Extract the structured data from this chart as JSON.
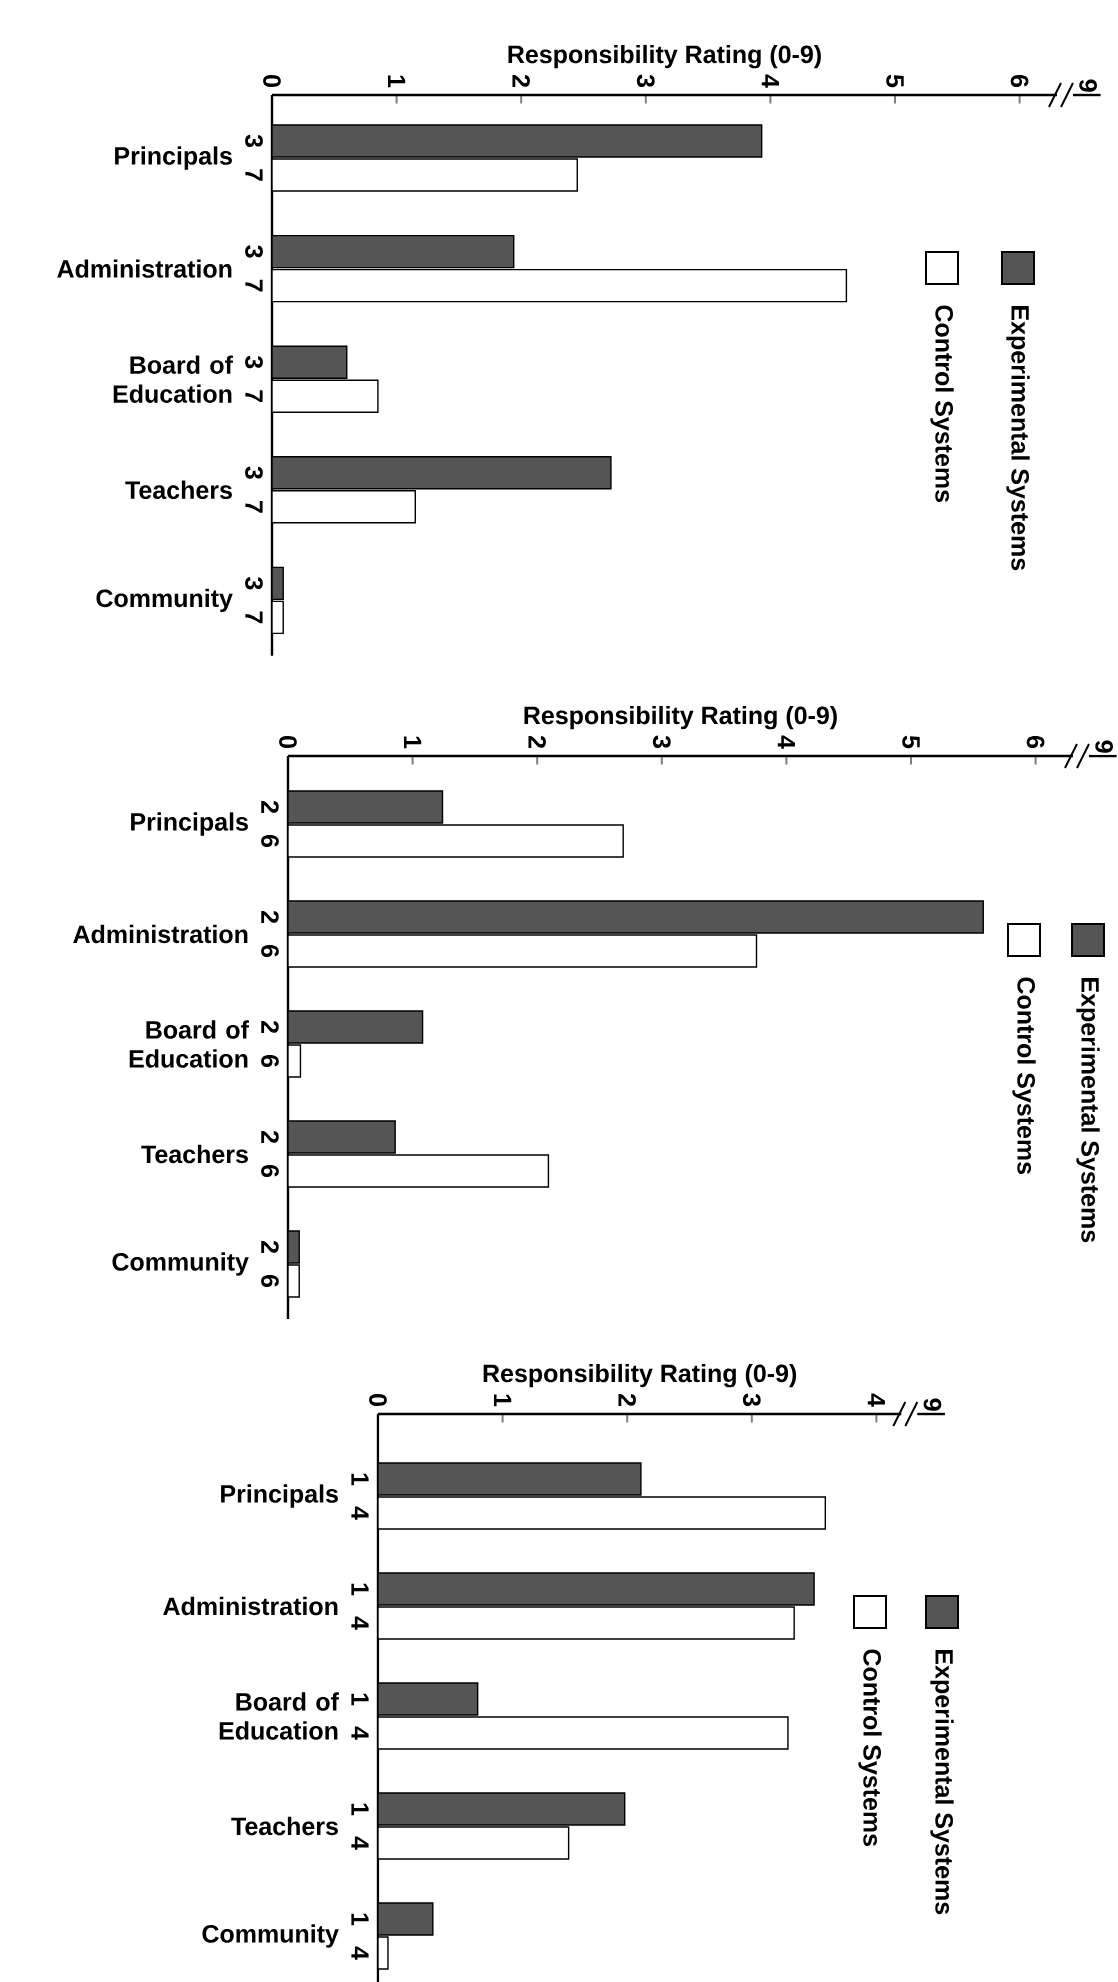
{
  "chart_data": [
    {
      "type": "bar",
      "orientation": "horizontal",
      "xlabel": "Responsibility Rating (0-9)",
      "categories": [
        "Principals",
        "Administration",
        "Board of Education",
        "Teachers",
        "Community"
      ],
      "series": [
        {
          "name": "Experimental Systems",
          "color": "#555555",
          "values": [
            3.93,
            1.94,
            0.6,
            2.72,
            0.09
          ]
        },
        {
          "name": "Control Systems",
          "color": "#ffffff",
          "values": [
            2.45,
            4.61,
            0.85,
            1.15,
            0.09
          ]
        }
      ],
      "xlim": [
        0,
        6.3
      ],
      "xticks": [
        0,
        1,
        2,
        3,
        4,
        5,
        6
      ],
      "legend": "right",
      "annotations": [
        "9",
        "3",
        "7",
        "3",
        "7",
        "3",
        "7",
        "3",
        "7",
        "3",
        "7"
      ]
    },
    {
      "type": "bar",
      "orientation": "horizontal",
      "xlabel": "Responsibility Rating (0-9)",
      "categories": [
        "Principals",
        "Administration",
        "Board of Education",
        "Teachers",
        "Community"
      ],
      "series": [
        {
          "name": "Experimental Systems",
          "color": "#555555",
          "values": [
            1.24,
            5.58,
            1.08,
            0.86,
            0.09
          ]
        },
        {
          "name": "Control Systems",
          "color": "#ffffff",
          "values": [
            2.69,
            3.76,
            0.1,
            2.09,
            0.09
          ]
        }
      ],
      "xlim": [
        0,
        6.3
      ],
      "xticks": [
        0,
        1,
        2,
        3,
        4,
        5,
        6
      ],
      "legend": "right",
      "annotations": [
        "9",
        "2",
        "6",
        "2",
        "6",
        "2",
        "6",
        "2",
        "6",
        "2",
        "6"
      ]
    },
    {
      "type": "bar",
      "orientation": "horizontal",
      "xlabel": "Responsibility Rating (0-9)",
      "categories": [
        "Principals",
        "Administration",
        "Board of Education",
        "Teachers",
        "Community"
      ],
      "series": [
        {
          "name": "Experimental Systems",
          "color": "#555555",
          "values": [
            2.11,
            3.5,
            0.8,
            1.98,
            0.44
          ]
        },
        {
          "name": "Control Systems",
          "color": "#ffffff",
          "values": [
            3.59,
            3.34,
            3.29,
            1.53,
            0.08
          ]
        }
      ],
      "xlim": [
        0,
        4.2
      ],
      "xticks": [
        0,
        1,
        2,
        3,
        4
      ],
      "legend": "right",
      "annotations": [
        "9",
        "1",
        "4",
        "1",
        "4",
        "1",
        "4",
        "1",
        "4",
        "1",
        "4"
      ]
    }
  ]
}
